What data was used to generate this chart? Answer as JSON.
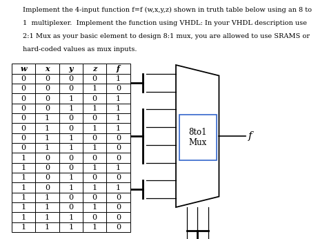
{
  "title_line1": "Implement the 4-input function f=f (w,x,y,z) shown in truth table below using an 8 to",
  "title_line2": "1  multiplexer.  Implement the function using VHDL: In your VHDL description use",
  "title_line3": "2:1 Mux as your basic element to design 8:1 mux, you are allowed to use SRAMS or",
  "title_line4": "hard-coded values as mux inputs.",
  "headers": [
    "w",
    "x",
    "y",
    "z",
    "f"
  ],
  "rows": [
    [
      0,
      0,
      0,
      0,
      1
    ],
    [
      0,
      0,
      0,
      1,
      0
    ],
    [
      0,
      0,
      1,
      0,
      1
    ],
    [
      0,
      0,
      1,
      1,
      1
    ],
    [
      0,
      1,
      0,
      0,
      1
    ],
    [
      0,
      1,
      0,
      1,
      1
    ],
    [
      0,
      1,
      1,
      0,
      0
    ],
    [
      0,
      1,
      1,
      1,
      0
    ],
    [
      1,
      0,
      0,
      0,
      0
    ],
    [
      1,
      0,
      0,
      1,
      1
    ],
    [
      1,
      0,
      1,
      0,
      0
    ],
    [
      1,
      0,
      1,
      1,
      1
    ],
    [
      1,
      1,
      0,
      0,
      0
    ],
    [
      1,
      1,
      0,
      1,
      0
    ],
    [
      1,
      1,
      1,
      0,
      0
    ],
    [
      1,
      1,
      1,
      1,
      0
    ]
  ],
  "mux_label": "8to1\nMux",
  "output_label": "f",
  "bg_color": "#ffffff",
  "text_color": "#000000",
  "title_italic_word": "f=f (w,x,y,z)",
  "title_fontsize": 7.0,
  "table_fontsize": 8.0
}
